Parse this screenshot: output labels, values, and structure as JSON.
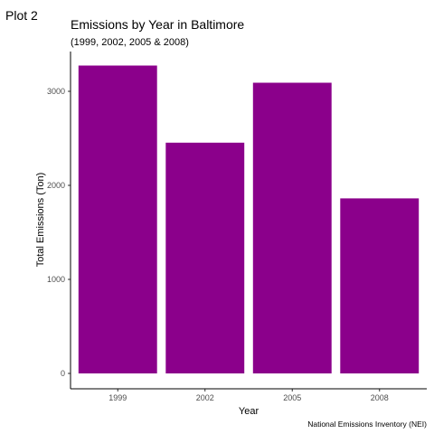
{
  "plot_tag": "Plot 2",
  "chart_data": {
    "type": "bar",
    "title": "Emissions by Year in Baltimore",
    "subtitle": "(1999, 2002, 2005 & 2008)",
    "xlabel": "Year",
    "ylabel": "Total Emissions (Ton)",
    "caption": "National Emissions Inventory (NEI)",
    "categories": [
      "1999",
      "2002",
      "2005",
      "2008"
    ],
    "values": [
      3274,
      2454,
      3091,
      1862
    ],
    "ylim": [
      0,
      3400
    ],
    "yticks": [
      0,
      1000,
      2000,
      3000
    ],
    "bar_color": "#8B008B",
    "grid": false
  }
}
